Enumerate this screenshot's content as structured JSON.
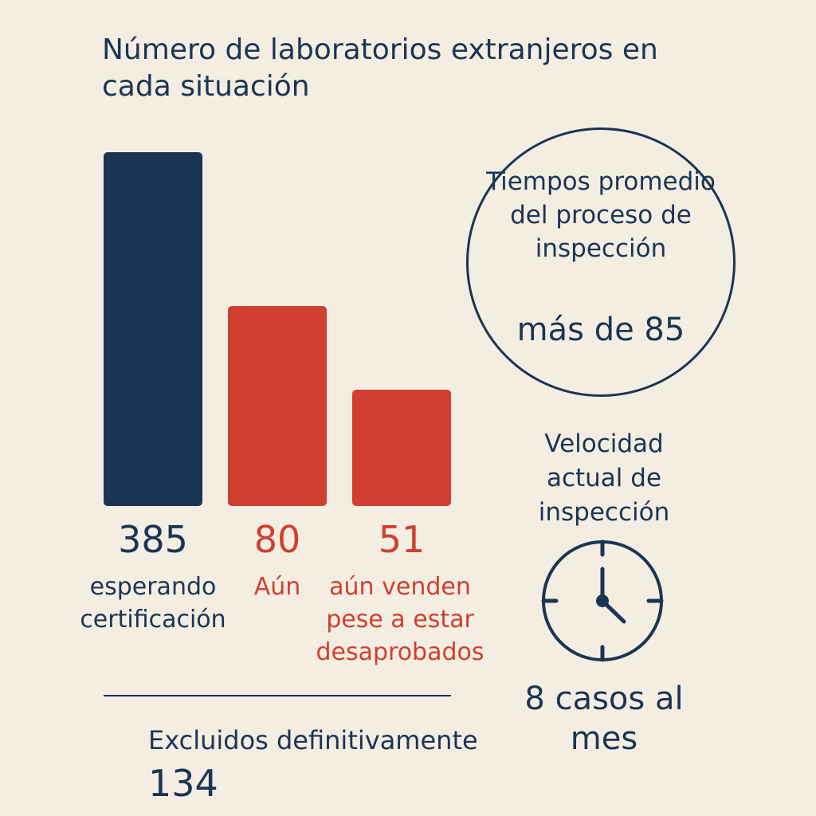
{
  "colors": {
    "background": "#f4ede2",
    "navy": "#1b3554",
    "red": "#cf4030"
  },
  "chart_data": {
    "type": "bar",
    "title": "Número de laboratorios extranjeros en cada situación",
    "categories": [
      "esperando certificación",
      "Aún",
      "aún venden pese a estar desaprobados"
    ],
    "values": [
      385,
      80,
      51
    ],
    "value_labels": [
      "385",
      "80",
      "51"
    ],
    "colors": [
      "#1b3554",
      "#cf4030",
      "#cf4030"
    ]
  },
  "circle": {
    "label": "Tiempos promedio del proceso de inspección",
    "value": "más de 85"
  },
  "velocity": {
    "label": "Velocidad actual de inspección",
    "value": "8 casos al mes",
    "icon": "clock-icon"
  },
  "excluded": {
    "label": "Excluidos definitivamente",
    "value": "134"
  }
}
